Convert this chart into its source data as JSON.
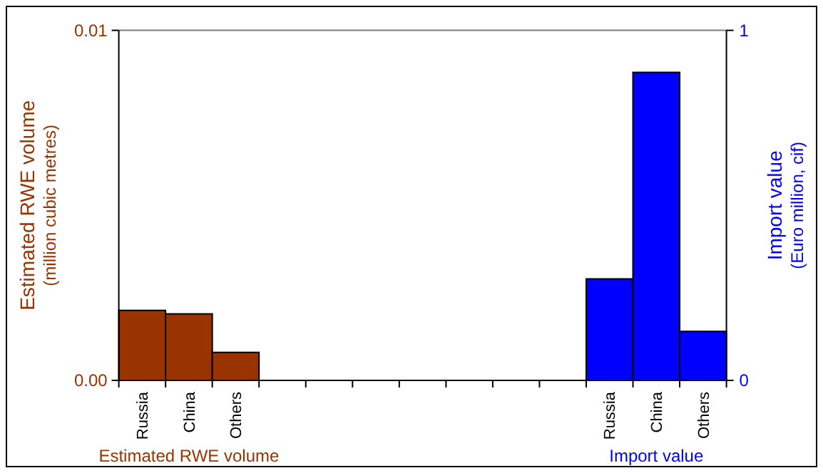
{
  "chart_data": {
    "type": "bar",
    "categories": [
      "Russia",
      "China",
      "Others",
      null,
      null,
      null,
      null,
      null,
      null,
      null,
      "Russia",
      "China",
      "Others"
    ],
    "series": [
      {
        "name": "Estimated RWE volume",
        "color": "#993300",
        "values": [
          0.002,
          0.0019,
          0.0008,
          null,
          null,
          null,
          null,
          null,
          null,
          null,
          null,
          null,
          null
        ]
      },
      {
        "name": "Import value",
        "color": "#0000ff",
        "axis": "y2",
        "values": [
          null,
          null,
          null,
          null,
          null,
          null,
          null,
          null,
          null,
          null,
          0.29,
          0.88,
          0.14
        ]
      }
    ],
    "ylabel": "Estimated RWE volume\n(million cubic metres)",
    "y2label": "Import value\n(Euro million, cif)",
    "ylim": [
      0,
      0.01
    ],
    "yticks": [
      {
        "value": 0,
        "label": "0.00"
      },
      {
        "value": 0.01,
        "label": "0.01"
      }
    ],
    "y2lim": [
      0,
      1
    ],
    "y2ticks": [
      0,
      1
    ],
    "grid": false
  }
}
